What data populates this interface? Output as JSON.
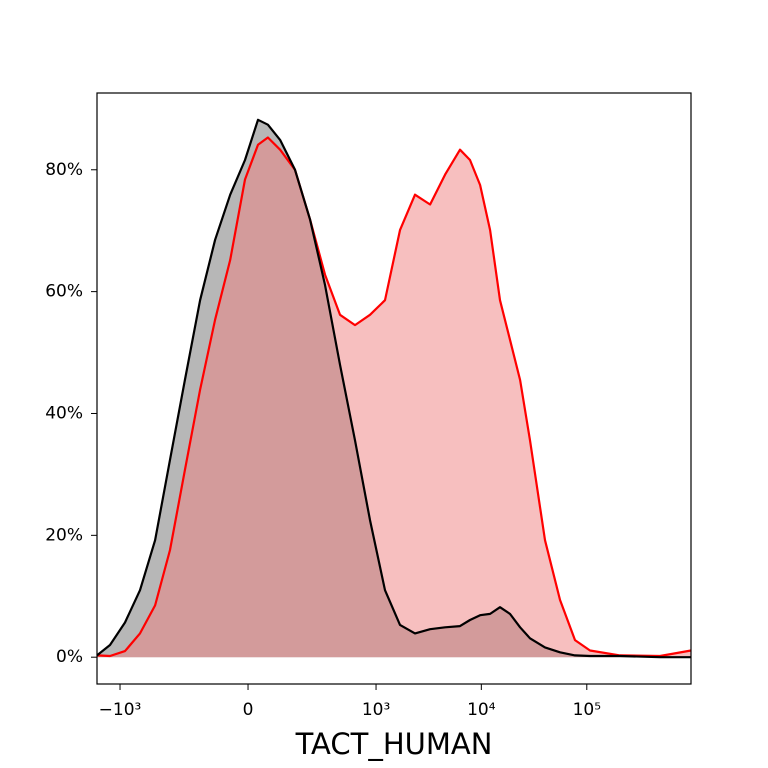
{
  "chart_data": {
    "type": "area",
    "x_label": "TACT_HUMAN",
    "xscale": "asinh",
    "x": [
      -1657,
      -1245,
      -896,
      -643,
      -459,
      -326,
      -228,
      -153,
      -96,
      -49,
      -8,
      27,
      55,
      93,
      149,
      222,
      318,
      449,
      628,
      876,
      1218,
      1693,
      2350,
      3264,
      4528,
      6282,
      7816,
      9724,
      12098,
      15043,
      18712,
      23289,
      28957,
      40184,
      55767,
      77362,
      107363,
      206504,
      494849,
      973011
    ],
    "series": [
      {
        "color": "#000000",
        "fill": "#b3b3b3",
        "values": [
          0.3,
          2.0,
          5.7,
          11.0,
          19.2,
          32.4,
          45.5,
          58.6,
          68.5,
          75.9,
          81.6,
          88.2,
          87.4,
          84.9,
          80.0,
          71.8,
          61.1,
          48.0,
          35.6,
          22.5,
          11.0,
          5.3,
          3.9,
          4.6,
          4.9,
          5.1,
          6.1,
          6.9,
          7.1,
          8.2,
          7.1,
          4.9,
          3.1,
          1.6,
          0.8,
          0.3,
          0.2,
          0.2,
          0,
          0
        ]
      },
      {
        "color": "#ff0000",
        "fill": "#f08080",
        "values": [
          0.3,
          0.2,
          1.0,
          3.9,
          8.5,
          17.6,
          30.7,
          43.9,
          55.4,
          65.2,
          78.4,
          84.1,
          85.3,
          83.3,
          80.0,
          71.8,
          62.8,
          56.2,
          54.5,
          56.2,
          58.6,
          70.1,
          75.9,
          74.3,
          79.2,
          83.3,
          81.6,
          77.5,
          70.1,
          58.6,
          52.1,
          45.5,
          35.6,
          19.2,
          9.4,
          2.8,
          1.1,
          0.3,
          0.2,
          1.1
        ]
      }
    ],
    "xlim": [
      -1657,
      973011
    ],
    "xticks": [
      {
        "value": -1000,
        "label": "−10³"
      },
      0,
      {
        "value": 1000,
        "label": "10³"
      },
      {
        "value": 10000,
        "label": "10⁴"
      },
      {
        "value": 100000,
        "label": "10⁵"
      }
    ],
    "ylim": [
      -4.4,
      92.6
    ],
    "yticks": [
      {
        "value": 0,
        "label": "0%"
      },
      {
        "value": 20,
        "label": "20%"
      },
      {
        "value": 40,
        "label": "40%"
      },
      {
        "value": 60,
        "label": "60%"
      },
      {
        "value": 80,
        "label": "80%"
      }
    ]
  }
}
